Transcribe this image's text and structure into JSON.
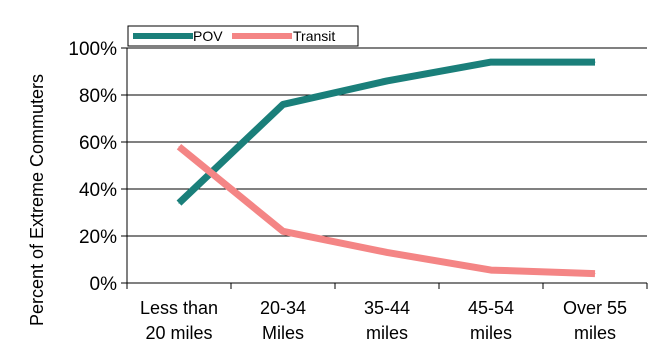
{
  "chart_data": {
    "type": "line",
    "categories": [
      [
        "Less than",
        "20 miles"
      ],
      [
        "20-34",
        "Miles"
      ],
      [
        "35-44",
        "miles"
      ],
      [
        "45-54",
        "miles"
      ],
      [
        "Over 55",
        "miles"
      ]
    ],
    "series": [
      {
        "name": "POV",
        "color": "#1a7f7a",
        "values": [
          0.34,
          0.76,
          0.86,
          0.94,
          0.94
        ]
      },
      {
        "name": "Transit",
        "color": "#f48585",
        "values": [
          0.58,
          0.22,
          0.13,
          0.055,
          0.04
        ]
      }
    ],
    "ylim": [
      0,
      1
    ],
    "yticks": [
      0,
      0.2,
      0.4,
      0.6,
      0.8,
      1.0
    ],
    "ytick_labels": [
      "0%",
      "20%",
      "40%",
      "60%",
      "80%",
      "100%"
    ],
    "ylabel": "Percent of Extreme Commuters",
    "xlabel": "",
    "title": "",
    "grid": true,
    "legend_position": "top-left"
  }
}
